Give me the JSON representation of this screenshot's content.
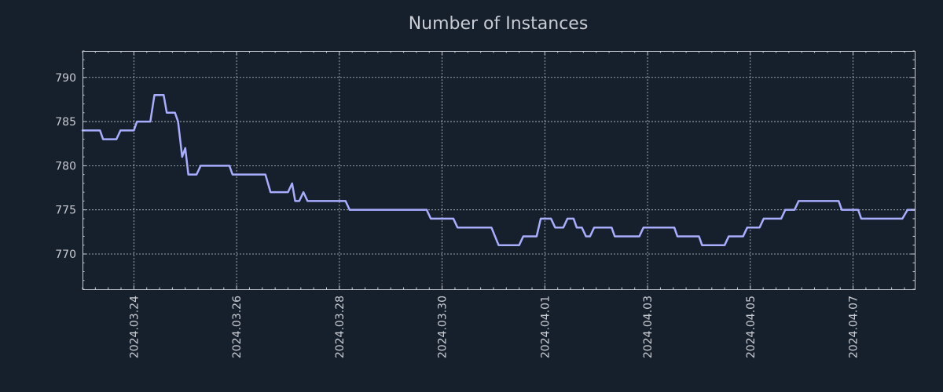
{
  "chart_data": {
    "type": "line",
    "title": "Number of Instances",
    "xlabel": "",
    "ylabel": "",
    "x_unit": "days since 2024-03-23 00:00",
    "xlim": [
      0,
      16.2
    ],
    "ylim": [
      766,
      793
    ],
    "grid": true,
    "legend": "none",
    "x_ticks": [
      {
        "value": 1,
        "label": "2024.03.24"
      },
      {
        "value": 3,
        "label": "2024.03.26"
      },
      {
        "value": 5,
        "label": "2024.03.28"
      },
      {
        "value": 7,
        "label": "2024.03.30"
      },
      {
        "value": 9,
        "label": "2024.04.01"
      },
      {
        "value": 11,
        "label": "2024.04.03"
      },
      {
        "value": 13,
        "label": "2024.04.05"
      },
      {
        "value": 15,
        "label": "2024.04.07"
      }
    ],
    "y_ticks": [
      {
        "value": 770,
        "label": "770"
      },
      {
        "value": 775,
        "label": "775"
      },
      {
        "value": 780,
        "label": "780"
      },
      {
        "value": 785,
        "label": "785"
      },
      {
        "value": 790,
        "label": "790"
      }
    ],
    "series": [
      {
        "name": "Number of Instances",
        "color": "#a9adff",
        "points": [
          [
            0.0,
            784
          ],
          [
            0.34,
            784
          ],
          [
            0.4,
            783
          ],
          [
            0.66,
            783
          ],
          [
            0.74,
            784
          ],
          [
            1.0,
            784
          ],
          [
            1.06,
            785
          ],
          [
            1.32,
            785
          ],
          [
            1.4,
            788
          ],
          [
            1.58,
            788
          ],
          [
            1.64,
            786
          ],
          [
            1.8,
            786
          ],
          [
            1.86,
            785
          ],
          [
            1.94,
            781
          ],
          [
            2.0,
            782
          ],
          [
            2.06,
            779
          ],
          [
            2.22,
            779
          ],
          [
            2.3,
            780
          ],
          [
            2.86,
            780
          ],
          [
            2.92,
            779
          ],
          [
            3.56,
            779
          ],
          [
            3.66,
            777
          ],
          [
            4.0,
            777
          ],
          [
            4.08,
            778
          ],
          [
            4.14,
            776
          ],
          [
            4.22,
            776
          ],
          [
            4.3,
            777
          ],
          [
            4.38,
            776
          ],
          [
            5.12,
            776
          ],
          [
            5.2,
            775
          ],
          [
            6.7,
            775
          ],
          [
            6.78,
            774
          ],
          [
            7.22,
            774
          ],
          [
            7.3,
            773
          ],
          [
            7.96,
            773
          ],
          [
            8.1,
            771
          ],
          [
            8.5,
            771
          ],
          [
            8.58,
            772
          ],
          [
            8.84,
            772
          ],
          [
            8.92,
            774
          ],
          [
            9.12,
            774
          ],
          [
            9.2,
            773
          ],
          [
            9.36,
            773
          ],
          [
            9.44,
            774
          ],
          [
            9.56,
            774
          ],
          [
            9.62,
            773
          ],
          [
            9.72,
            773
          ],
          [
            9.8,
            772
          ],
          [
            9.88,
            772
          ],
          [
            9.96,
            773
          ],
          [
            10.3,
            773
          ],
          [
            10.36,
            772
          ],
          [
            10.84,
            772
          ],
          [
            10.92,
            773
          ],
          [
            11.52,
            773
          ],
          [
            11.58,
            772
          ],
          [
            12.0,
            772
          ],
          [
            12.06,
            771
          ],
          [
            12.5,
            771
          ],
          [
            12.58,
            772
          ],
          [
            12.86,
            772
          ],
          [
            12.94,
            773
          ],
          [
            13.18,
            773
          ],
          [
            13.26,
            774
          ],
          [
            13.6,
            774
          ],
          [
            13.68,
            775
          ],
          [
            13.86,
            775
          ],
          [
            13.94,
            776
          ],
          [
            14.72,
            776
          ],
          [
            14.78,
            775
          ],
          [
            15.1,
            775
          ],
          [
            15.16,
            774
          ],
          [
            15.96,
            774
          ],
          [
            16.06,
            775
          ],
          [
            16.2,
            775
          ]
        ]
      }
    ]
  }
}
